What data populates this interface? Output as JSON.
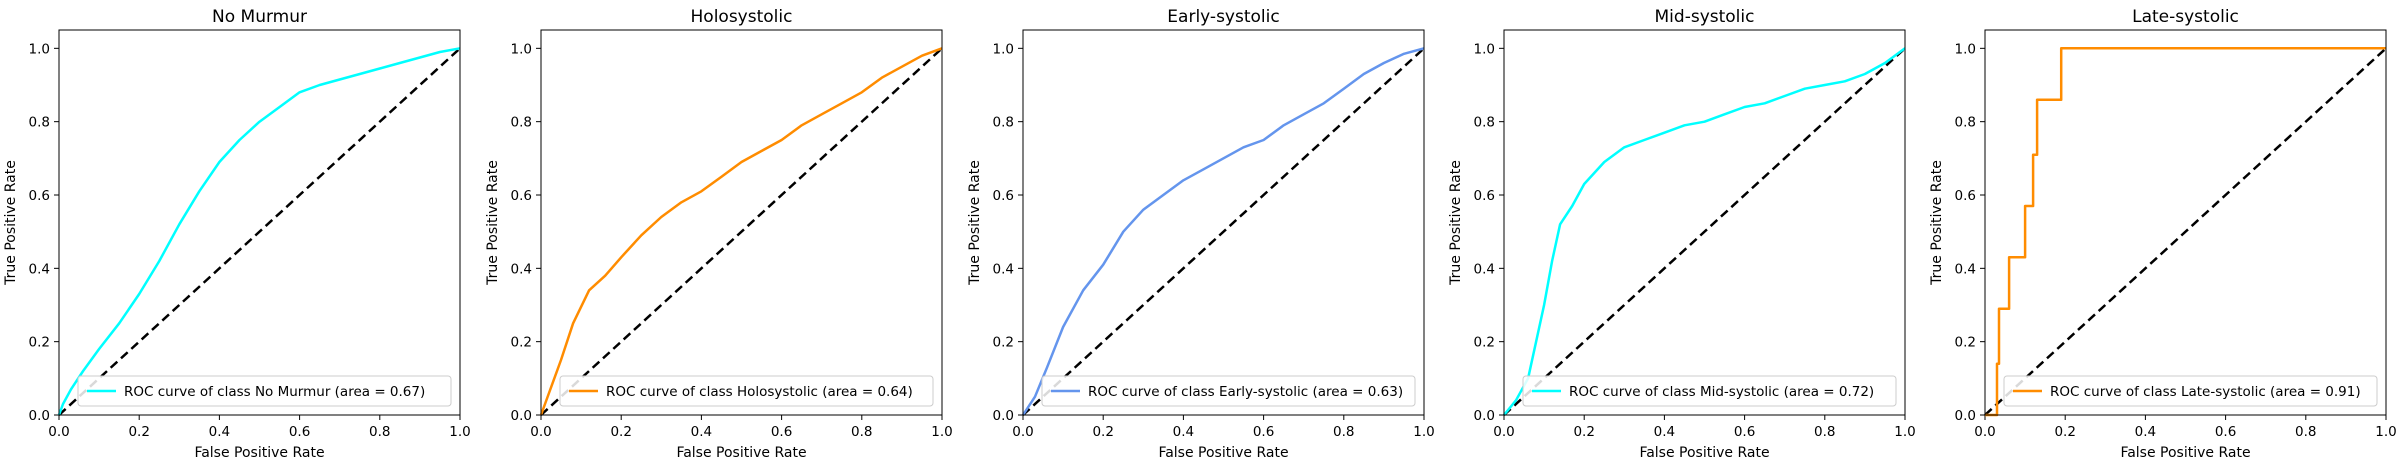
{
  "chart_data": [
    {
      "type": "line",
      "title": "No Murmur",
      "xlabel": "False Positive Rate",
      "ylabel": "True Positive Rate",
      "xlim": [
        0.0,
        1.0
      ],
      "ylim": [
        0.0,
        1.05
      ],
      "ticks": [
        "0.0",
        "0.2",
        "0.4",
        "0.6",
        "0.8",
        "1.0"
      ],
      "legend_position": "lower-right",
      "color": "#00FFFF",
      "series": [
        {
          "name": "ROC curve of class No Murmur (area = 0.67)",
          "x": [
            0,
            0.01,
            0.03,
            0.06,
            0.1,
            0.15,
            0.2,
            0.25,
            0.3,
            0.35,
            0.4,
            0.45,
            0.5,
            0.55,
            0.6,
            0.65,
            0.7,
            0.75,
            0.8,
            0.85,
            0.9,
            0.95,
            1.0
          ],
          "y": [
            0,
            0.03,
            0.07,
            0.12,
            0.18,
            0.25,
            0.33,
            0.42,
            0.52,
            0.61,
            0.69,
            0.75,
            0.8,
            0.84,
            0.88,
            0.9,
            0.915,
            0.93,
            0.945,
            0.96,
            0.975,
            0.99,
            1.0
          ]
        }
      ],
      "reference_line": {
        "x": [
          0,
          1
        ],
        "y": [
          0,
          1
        ]
      }
    },
    {
      "type": "line",
      "title": "Holosystolic",
      "xlabel": "False Positive Rate",
      "ylabel": "True Positive Rate",
      "xlim": [
        0.0,
        1.0
      ],
      "ylim": [
        0.0,
        1.05
      ],
      "ticks": [
        "0.0",
        "0.2",
        "0.4",
        "0.6",
        "0.8",
        "1.0"
      ],
      "legend_position": "lower-right",
      "color": "#FF8C00",
      "series": [
        {
          "name": "ROC curve of class Holosystolic (area = 0.64)",
          "x": [
            0,
            0.02,
            0.05,
            0.08,
            0.12,
            0.16,
            0.2,
            0.25,
            0.3,
            0.35,
            0.4,
            0.45,
            0.5,
            0.55,
            0.6,
            0.65,
            0.7,
            0.75,
            0.8,
            0.85,
            0.9,
            0.95,
            1.0
          ],
          "y": [
            0,
            0.06,
            0.15,
            0.25,
            0.34,
            0.38,
            0.43,
            0.49,
            0.54,
            0.58,
            0.61,
            0.65,
            0.69,
            0.72,
            0.75,
            0.79,
            0.82,
            0.85,
            0.88,
            0.92,
            0.95,
            0.98,
            1.0
          ]
        }
      ],
      "reference_line": {
        "x": [
          0,
          1
        ],
        "y": [
          0,
          1
        ]
      }
    },
    {
      "type": "line",
      "title": "Early-systolic",
      "xlabel": "False Positive Rate",
      "ylabel": "True Positive Rate",
      "xlim": [
        0.0,
        1.0
      ],
      "ylim": [
        0.0,
        1.05
      ],
      "ticks": [
        "0.0",
        "0.2",
        "0.4",
        "0.6",
        "0.8",
        "1.0"
      ],
      "legend_position": "lower-right",
      "color": "#6495ED",
      "series": [
        {
          "name": "ROC curve of class Early-systolic (area = 0.63)",
          "x": [
            0,
            0.03,
            0.06,
            0.1,
            0.15,
            0.2,
            0.25,
            0.3,
            0.35,
            0.4,
            0.45,
            0.5,
            0.55,
            0.6,
            0.65,
            0.7,
            0.75,
            0.8,
            0.85,
            0.9,
            0.95,
            1.0
          ],
          "y": [
            0,
            0.05,
            0.13,
            0.24,
            0.34,
            0.41,
            0.5,
            0.56,
            0.6,
            0.64,
            0.67,
            0.7,
            0.73,
            0.75,
            0.79,
            0.82,
            0.85,
            0.89,
            0.93,
            0.96,
            0.985,
            1.0
          ]
        }
      ],
      "reference_line": {
        "x": [
          0,
          1
        ],
        "y": [
          0,
          1
        ]
      }
    },
    {
      "type": "line",
      "title": "Mid-systolic",
      "xlabel": "False Positive Rate",
      "ylabel": "True Positive Rate",
      "xlim": [
        0.0,
        1.0
      ],
      "ylim": [
        0.0,
        1.05
      ],
      "ticks": [
        "0.0",
        "0.2",
        "0.4",
        "0.6",
        "0.8",
        "1.0"
      ],
      "legend_position": "lower-right",
      "color": "#00FFFF",
      "series": [
        {
          "name": "ROC curve of class Mid-systolic (area = 0.72)",
          "x": [
            0,
            0.03,
            0.06,
            0.08,
            0.1,
            0.12,
            0.14,
            0.17,
            0.2,
            0.25,
            0.3,
            0.35,
            0.4,
            0.45,
            0.5,
            0.55,
            0.6,
            0.65,
            0.7,
            0.75,
            0.8,
            0.85,
            0.9,
            0.95,
            1.0
          ],
          "y": [
            0,
            0.04,
            0.1,
            0.2,
            0.3,
            0.42,
            0.52,
            0.57,
            0.63,
            0.69,
            0.73,
            0.75,
            0.77,
            0.79,
            0.8,
            0.82,
            0.84,
            0.85,
            0.87,
            0.89,
            0.9,
            0.91,
            0.93,
            0.96,
            1.0
          ]
        }
      ],
      "reference_line": {
        "x": [
          0,
          1
        ],
        "y": [
          0,
          1
        ]
      }
    },
    {
      "type": "line",
      "title": "Late-systolic",
      "xlabel": "False Positive Rate",
      "ylabel": "True Positive Rate",
      "xlim": [
        0.0,
        1.0
      ],
      "ylim": [
        0.0,
        1.05
      ],
      "ticks": [
        "0.0",
        "0.2",
        "0.4",
        "0.6",
        "0.8",
        "1.0"
      ],
      "legend_position": "lower-right",
      "color": "#FF8C00",
      "series": [
        {
          "name": "ROC curve of class Late-systolic (area = 0.91)",
          "x": [
            0,
            0.03,
            0.03,
            0.035,
            0.035,
            0.05,
            0.05,
            0.06,
            0.06,
            0.06,
            0.06,
            0.1,
            0.1,
            0.12,
            0.12,
            0.13,
            0.13,
            0.19,
            0.19,
            1.0
          ],
          "y": [
            0,
            0,
            0.14,
            0.14,
            0.29,
            0.29,
            0.29,
            0.29,
            0.43,
            0.43,
            0.43,
            0.43,
            0.57,
            0.57,
            0.71,
            0.71,
            0.86,
            0.86,
            1.0,
            1.0
          ]
        }
      ],
      "reference_line": {
        "x": [
          0,
          1
        ],
        "y": [
          0,
          1
        ]
      }
    }
  ]
}
